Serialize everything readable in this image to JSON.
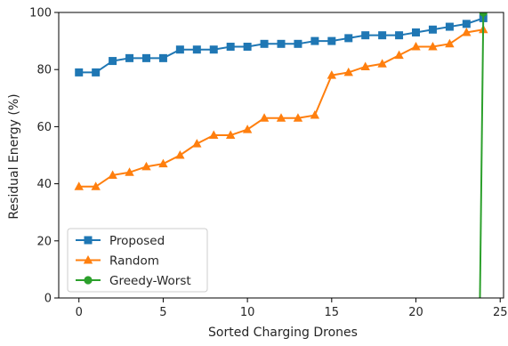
{
  "chart_data": {
    "type": "line",
    "title": "",
    "xlabel": "Sorted Charging Drones",
    "ylabel": "Residual Energy (%)",
    "xlim": [
      -1.2,
      25.2
    ],
    "ylim": [
      0,
      100
    ],
    "xticks": [
      0,
      5,
      10,
      15,
      20,
      25
    ],
    "yticks": [
      0,
      20,
      40,
      60,
      80,
      100
    ],
    "grid": false,
    "legend_position": "lower-left",
    "series": [
      {
        "name": "Proposed",
        "color": "#1f77b4",
        "marker": "square",
        "x": [
          0,
          1,
          2,
          3,
          4,
          5,
          6,
          7,
          8,
          9,
          10,
          11,
          12,
          13,
          14,
          15,
          16,
          17,
          18,
          19,
          20,
          21,
          22,
          23,
          24
        ],
        "values": [
          79,
          79,
          83,
          84,
          84,
          84,
          87,
          87,
          87,
          88,
          88,
          89,
          89,
          89,
          90,
          90,
          91,
          92,
          92,
          92,
          93,
          94,
          95,
          96,
          98
        ]
      },
      {
        "name": "Random",
        "color": "#ff7f0e",
        "marker": "triangle",
        "x": [
          0,
          1,
          2,
          3,
          4,
          5,
          6,
          7,
          8,
          9,
          10,
          11,
          12,
          13,
          14,
          15,
          16,
          17,
          18,
          19,
          20,
          21,
          22,
          23,
          24
        ],
        "values": [
          39,
          39,
          43,
          44,
          46,
          47,
          50,
          54,
          57,
          57,
          59,
          63,
          63,
          63,
          64,
          78,
          79,
          81,
          82,
          85,
          88,
          88,
          89,
          93,
          94
        ]
      },
      {
        "name": "Greedy-Worst",
        "color": "#2ca02c",
        "marker": "circle",
        "x": [
          23.8,
          24
        ],
        "values": [
          0,
          100
        ]
      }
    ]
  }
}
